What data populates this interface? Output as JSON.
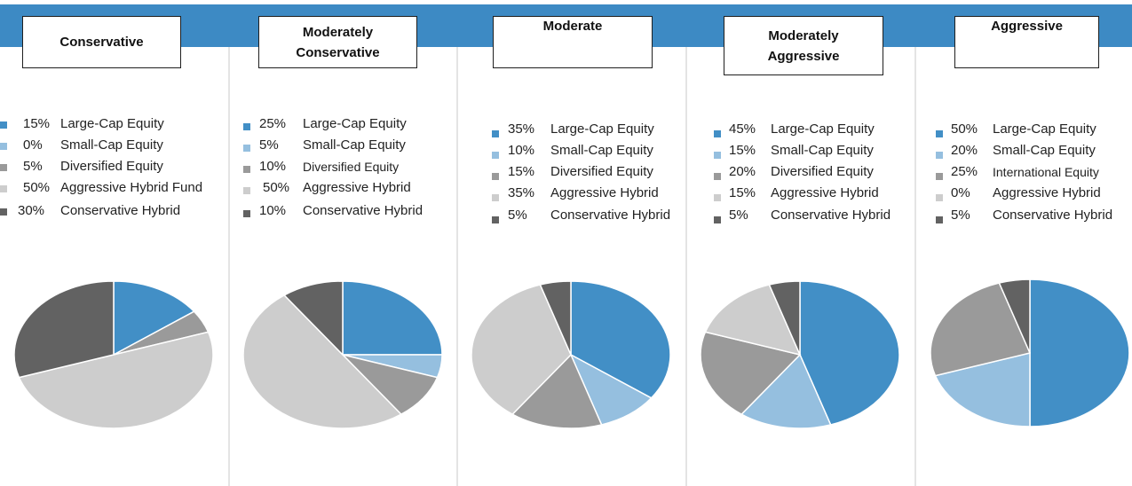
{
  "colors": {
    "banner": "#3d8ac4",
    "large_cap": "#428fc6",
    "small_cap": "#95bfdf",
    "diversified": "#9a9a9a",
    "aggressive_hybrid": "#cdcdcd",
    "conservative_hybrid": "#626262"
  },
  "chart_data": [
    {
      "type": "pie",
      "title": "Conservative",
      "categories": [
        "Large-Cap Equity",
        "Small-Cap Equity",
        "Diversified Equity",
        "Aggressive Hybrid Fund",
        "Conservative Hybrid"
      ],
      "values": [
        15,
        0,
        5,
        50,
        30
      ],
      "pct_labels": [
        "15%",
        "0%",
        "5%",
        "50%",
        "30%"
      ],
      "colors": [
        "#428fc6",
        "#95bfdf",
        "#9a9a9a",
        "#cdcdcd",
        "#626262"
      ]
    },
    {
      "type": "pie",
      "title": "Moderately Conservative",
      "categories": [
        "Large-Cap Equity",
        "Small-Cap Equity",
        "Diversified Equity",
        "Aggressive Hybrid",
        "Conservative Hybrid"
      ],
      "values": [
        25,
        5,
        10,
        50,
        10
      ],
      "pct_labels": [
        "25%",
        "5%",
        "10%",
        "50%",
        "10%"
      ],
      "colors": [
        "#428fc6",
        "#95bfdf",
        "#9a9a9a",
        "#cdcdcd",
        "#626262"
      ]
    },
    {
      "type": "pie",
      "title": "Moderate",
      "categories": [
        "Large-Cap Equity",
        "Small-Cap Equity",
        "Diversified Equity",
        "Aggressive Hybrid",
        "Conservative Hybrid"
      ],
      "values": [
        35,
        10,
        15,
        35,
        5
      ],
      "pct_labels": [
        "35%",
        "10%",
        "15%",
        "35%",
        "5%"
      ],
      "colors": [
        "#428fc6",
        "#95bfdf",
        "#9a9a9a",
        "#cdcdcd",
        "#626262"
      ]
    },
    {
      "type": "pie",
      "title": "Moderately Aggressive",
      "categories": [
        "Large-Cap Equity",
        "Small-Cap Equity",
        "Diversified Equity",
        "Aggressive Hybrid",
        "Conservative Hybrid"
      ],
      "values": [
        45,
        15,
        20,
        15,
        5
      ],
      "pct_labels": [
        "45%",
        "15%",
        "20%",
        "15%",
        "5%"
      ],
      "colors": [
        "#428fc6",
        "#95bfdf",
        "#9a9a9a",
        "#cdcdcd",
        "#626262"
      ]
    },
    {
      "type": "pie",
      "title": "Aggressive",
      "categories": [
        "Large-Cap Equity",
        "Small-Cap Equity",
        "International Equity",
        "Aggressive Hybrid",
        "Conservative Hybrid"
      ],
      "values": [
        50,
        20,
        25,
        0,
        5
      ],
      "pct_labels": [
        "50%",
        "20%",
        "25%",
        "0%",
        "5%"
      ],
      "colors": [
        "#428fc6",
        "#95bfdf",
        "#9a9a9a",
        "#cdcdcd",
        "#626262"
      ]
    }
  ]
}
